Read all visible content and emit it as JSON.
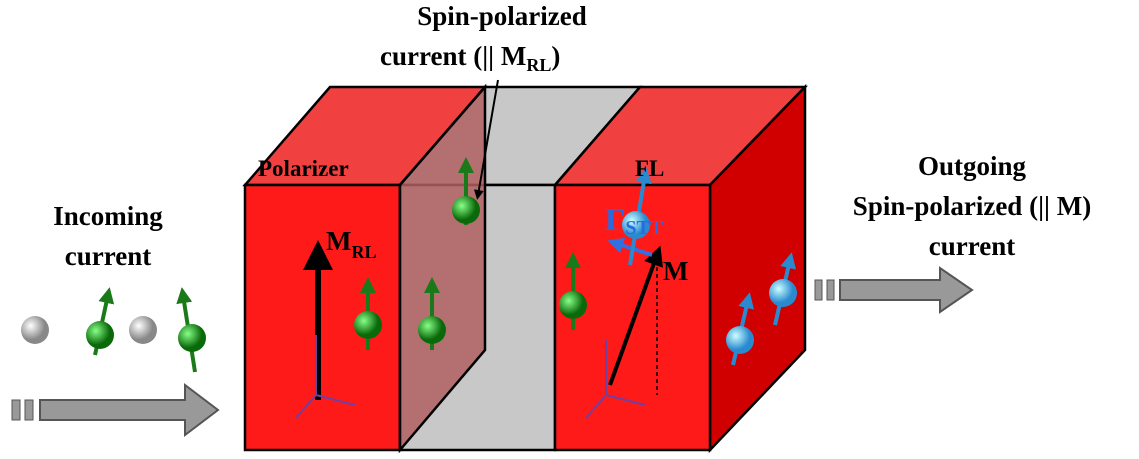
{
  "top_label": {
    "line1": "Spin-polarized",
    "line2": "current (|| M",
    "line2_sub": "RL",
    "line2_end": ")"
  },
  "incoming": {
    "line1": "Incoming",
    "line2": "current"
  },
  "outgoing": {
    "line1": "Outgoing",
    "line2": "Spin-polarized (|| M)",
    "line3": "current"
  },
  "layers": {
    "polarizer": "Polarizer",
    "free_layer": "FL"
  },
  "vectors": {
    "m_rl": "M",
    "m_rl_sub": "RL",
    "torque": "Γ",
    "torque_sub": "STT",
    "m": "M"
  }
}
